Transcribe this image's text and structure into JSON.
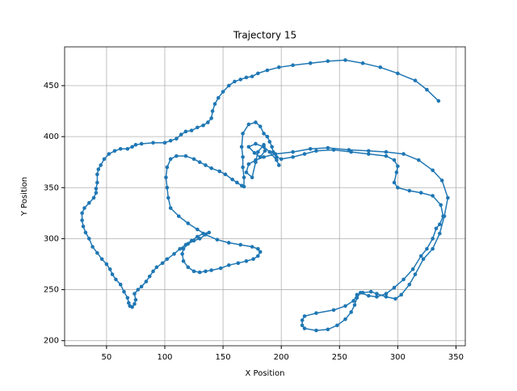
{
  "chart_data": {
    "type": "line",
    "title": "Trajectory 15",
    "x_label": "X Position",
    "y_label": "Y Position",
    "x": [
      335,
      325,
      315,
      300,
      285,
      270,
      255,
      240,
      225,
      210,
      198,
      188,
      180,
      175,
      170,
      165,
      160,
      155,
      150,
      146,
      143,
      141,
      140,
      137,
      133,
      128,
      123,
      118,
      114,
      110,
      105,
      100,
      90,
      80,
      75,
      72,
      68,
      62,
      57,
      52,
      48,
      45,
      43,
      42,
      42,
      41,
      41,
      39,
      35,
      31,
      29,
      29,
      30,
      32,
      35,
      38,
      42,
      46,
      50,
      53,
      55,
      58,
      62,
      65,
      68,
      69,
      70,
      72,
      74,
      75,
      74,
      77,
      80,
      84,
      87,
      90,
      93,
      98,
      102,
      108,
      113,
      118,
      123,
      128,
      133,
      138,
      130,
      125,
      120,
      116,
      115,
      116,
      120,
      125,
      130,
      135,
      140,
      148,
      155,
      163,
      170,
      176,
      180,
      182,
      180,
      175,
      165,
      155,
      145,
      135,
      128,
      120,
      112,
      105,
      103,
      102,
      101,
      102,
      105,
      110,
      118,
      125,
      130,
      135,
      140,
      147,
      152,
      158,
      162,
      166,
      168,
      168,
      167,
      167,
      166,
      167,
      172,
      178,
      182,
      185,
      188,
      190,
      192,
      193,
      196,
      200,
      210,
      220,
      230,
      245,
      260,
      275,
      290,
      297,
      300,
      299,
      297,
      300,
      310,
      320,
      330,
      337,
      339,
      336,
      333,
      330,
      325,
      320,
      313,
      305,
      297,
      290,
      282,
      275,
      268,
      265,
      263,
      260,
      255,
      248,
      240,
      230,
      220,
      218,
      218,
      220,
      230,
      245,
      255,
      262,
      265,
      270,
      277,
      282,
      290,
      298,
      303,
      310,
      315,
      322,
      330,
      336,
      340,
      343,
      338,
      330,
      318,
      305,
      290,
      275,
      258,
      240,
      225,
      210,
      195,
      185,
      178,
      172,
      170,
      175,
      178,
      180,
      185,
      186,
      182,
      177,
      172,
      178,
      185,
      190,
      196,
      198
    ],
    "values": [
      435,
      446,
      455,
      462,
      468,
      472,
      475,
      474,
      472,
      470,
      468,
      465,
      462,
      459,
      458,
      456,
      454,
      450,
      444,
      438,
      432,
      425,
      418,
      414,
      411,
      409,
      406,
      405,
      402,
      398,
      396,
      394,
      394,
      393,
      392,
      390,
      388,
      388,
      386,
      383,
      378,
      372,
      368,
      363,
      355,
      349,
      345,
      340,
      335,
      330,
      325,
      318,
      312,
      306,
      300,
      292,
      286,
      280,
      275,
      270,
      265,
      260,
      255,
      248,
      242,
      237,
      234,
      233,
      236,
      240,
      246,
      250,
      253,
      258,
      263,
      268,
      272,
      276,
      280,
      285,
      290,
      294,
      298,
      302,
      305,
      306,
      300,
      298,
      295,
      290,
      285,
      278,
      272,
      268,
      267,
      268,
      269,
      271,
      274,
      276,
      278,
      280,
      283,
      287,
      290,
      292,
      294,
      296,
      299,
      304,
      309,
      315,
      322,
      330,
      340,
      350,
      360,
      370,
      378,
      381,
      381,
      378,
      375,
      372,
      369,
      366,
      363,
      358,
      355,
      352,
      351,
      360,
      370,
      380,
      390,
      403,
      412,
      414,
      410,
      403,
      400,
      395,
      390,
      385,
      380,
      378,
      380,
      383,
      386,
      387,
      385,
      383,
      381,
      377,
      371,
      365,
      355,
      350,
      347,
      345,
      342,
      333,
      322,
      314,
      310,
      300,
      290,
      283,
      270,
      260,
      252,
      246,
      243,
      244,
      247,
      242,
      235,
      228,
      221,
      215,
      211,
      210,
      212,
      215,
      220,
      224,
      227,
      230,
      234,
      239,
      245,
      247,
      248,
      246,
      243,
      241,
      245,
      255,
      265,
      280,
      290,
      305,
      322,
      340,
      357,
      367,
      377,
      383,
      385,
      386,
      387,
      389,
      388,
      385,
      383,
      380,
      377,
      373,
      365,
      360,
      375,
      385,
      392,
      386,
      380,
      384,
      390,
      393,
      390,
      385,
      377,
      372
    ],
    "color": "#1f77b4",
    "xlim": [
      14,
      358
    ],
    "ylim": [
      195,
      488
    ],
    "xticks": [
      50,
      100,
      150,
      200,
      250,
      300,
      350
    ],
    "yticks": [
      200,
      250,
      300,
      350,
      400,
      450
    ],
    "grid": true
  }
}
